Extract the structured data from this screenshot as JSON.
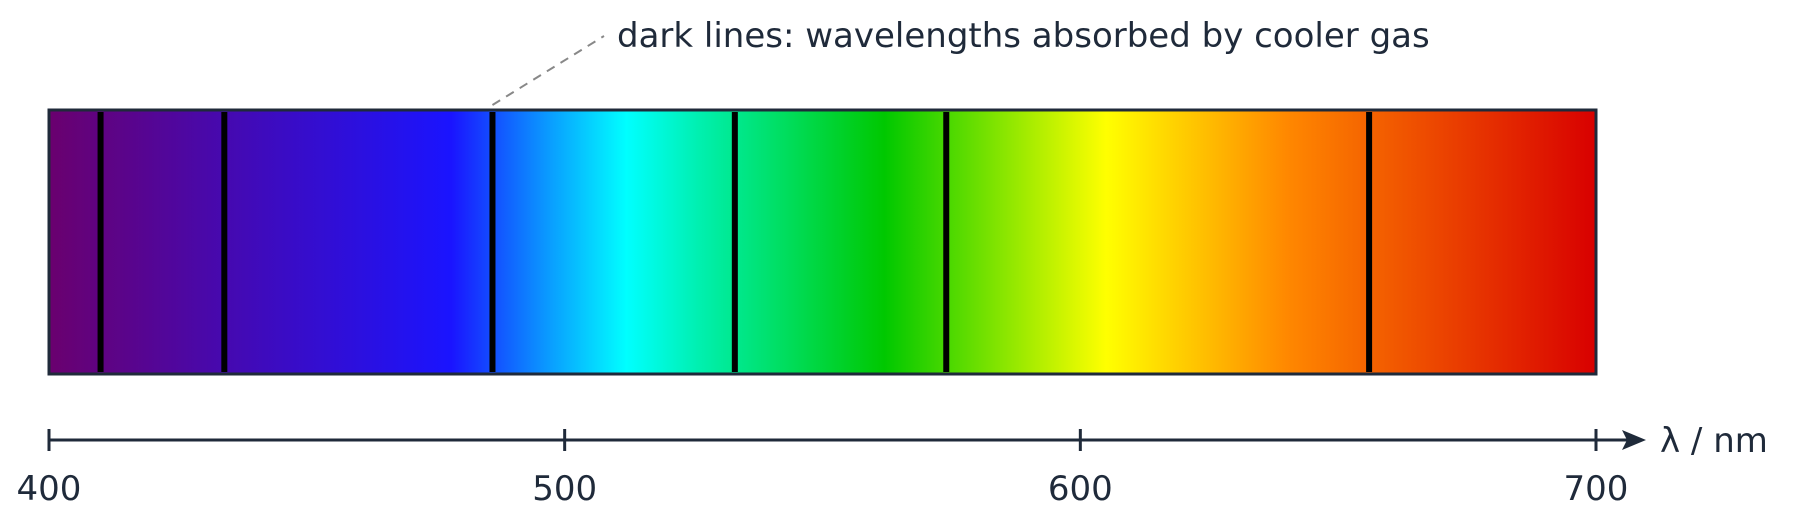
{
  "annotation": "dark lines: wavelengths absorbed by cooler gas",
  "axis": {
    "label": "λ / nm",
    "min": 400,
    "max": 700,
    "ticks": [
      {
        "value": 400,
        "label": "400"
      },
      {
        "value": 500,
        "label": "500"
      },
      {
        "value": 600,
        "label": "600"
      },
      {
        "value": 700,
        "label": "700"
      }
    ]
  },
  "spectrum": {
    "gradient": [
      {
        "nm": 400,
        "color": "#6a006e"
      },
      {
        "nm": 430,
        "color": "#4a08a8"
      },
      {
        "nm": 478,
        "color": "#1a14ff"
      },
      {
        "nm": 497,
        "color": "#0a9cff"
      },
      {
        "nm": 512,
        "color": "#00ffff"
      },
      {
        "nm": 526,
        "color": "#00f0b0"
      },
      {
        "nm": 562,
        "color": "#00c800"
      },
      {
        "nm": 605,
        "color": "#ffff00"
      },
      {
        "nm": 640,
        "color": "#ff8800"
      },
      {
        "nm": 700,
        "color": "#d80000"
      }
    ],
    "absorption_lines_nm": [
      410,
      434,
      486,
      533,
      574,
      656
    ],
    "annotated_line_nm": 486,
    "line_color": "#000000",
    "frame_color": "#1f2a3a"
  }
}
